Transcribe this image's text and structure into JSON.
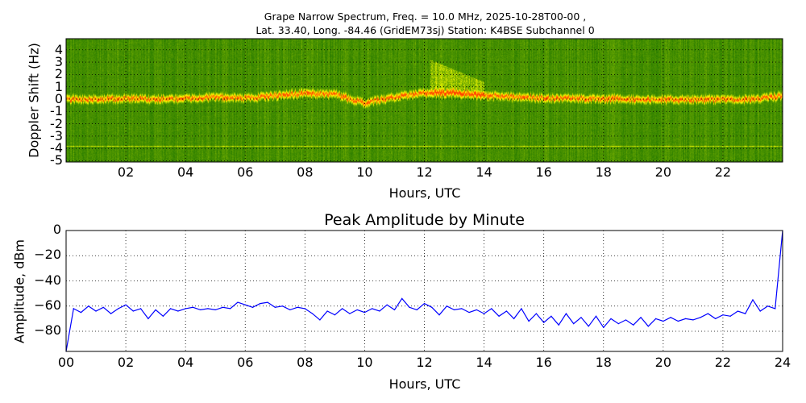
{
  "chart_data": [
    {
      "type": "heatmap",
      "title_line1": "Grape Narrow Spectrum, Freq. = 10.0 MHz, 2025-10-28T00-00 ,",
      "title_line2": "Lat.  33.40, Long. -84.46 (GridEM73sj) Station: K4BSE Subchannel 0",
      "xlabel": "Hours, UTC",
      "ylabel": "Doppler Shift (Hz)",
      "xlim": [
        0,
        24
      ],
      "ylim": [
        -5.1,
        4.9
      ],
      "xticks": [
        2,
        4,
        6,
        8,
        10,
        12,
        14,
        16,
        18,
        20,
        22
      ],
      "xtick_labels": [
        "02",
        "04",
        "06",
        "08",
        "10",
        "12",
        "14",
        "16",
        "18",
        "20",
        "22"
      ],
      "yticks": [
        4,
        3,
        2,
        1,
        0,
        -1,
        -2,
        -3,
        -4,
        -5
      ],
      "ytick_labels": [
        "4",
        "3",
        "2",
        "1",
        "0",
        "-1",
        "-2",
        "-3",
        "-4",
        "-5"
      ],
      "grid": true,
      "doppler_trace_hours": [
        0,
        1,
        2,
        3,
        4,
        5,
        6,
        7,
        8,
        9,
        10,
        11,
        12,
        13,
        14,
        15,
        16,
        17,
        18,
        19,
        20,
        21,
        22,
        23,
        24
      ],
      "doppler_trace_hz": [
        0,
        0,
        0.1,
        0,
        0.1,
        0.2,
        0.1,
        0.3,
        0.5,
        0.4,
        -0.3,
        0.2,
        0.5,
        0.5,
        0.3,
        0.2,
        0.1,
        0.1,
        0.05,
        0,
        0,
        0,
        0,
        0,
        0.3
      ],
      "constant_line_hz": -3.8
    },
    {
      "type": "line",
      "title": "Peak Amplitude by Minute",
      "xlabel": "Hours, UTC",
      "ylabel": "Amplitude, dBm",
      "xlim": [
        0,
        24
      ],
      "ylim": [
        -96,
        0
      ],
      "xticks": [
        0,
        2,
        4,
        6,
        8,
        10,
        12,
        14,
        16,
        18,
        20,
        22,
        24
      ],
      "xtick_labels": [
        "00",
        "02",
        "04",
        "06",
        "08",
        "10",
        "12",
        "14",
        "16",
        "18",
        "20",
        "22",
        "24"
      ],
      "yticks": [
        0,
        -20,
        -40,
        -60,
        -80
      ],
      "ytick_labels": [
        "0",
        "−20",
        "−40",
        "−60",
        "−80"
      ],
      "grid": true,
      "series": [
        {
          "name": "Peak Amplitude",
          "color": "#0000ff",
          "x_step_hours": 0.25,
          "values": [
            -96,
            -62,
            -65,
            -60,
            -64,
            -61,
            -66,
            -62,
            -59,
            -64,
            -62,
            -70,
            -63,
            -68,
            -62,
            -64,
            -62,
            -61,
            -63,
            -62,
            -63,
            -61,
            -62,
            -57,
            -59,
            -61,
            -58,
            -57,
            -61,
            -60,
            -63,
            -61,
            -62,
            -66,
            -71,
            -64,
            -67,
            -62,
            -66,
            -63,
            -65,
            -62,
            -64,
            -59,
            -63,
            -54,
            -61,
            -63,
            -58,
            -61,
            -67,
            -60,
            -63,
            -62,
            -65,
            -63,
            -66,
            -62,
            -68,
            -64,
            -70,
            -62,
            -72,
            -66,
            -73,
            -68,
            -75,
            -66,
            -74,
            -69,
            -76,
            -68,
            -77,
            -70,
            -74,
            -71,
            -75,
            -69,
            -76,
            -70,
            -72,
            -69,
            -72,
            -70,
            -71,
            -69,
            -66,
            -70,
            -67,
            -68,
            -64,
            -66,
            -55,
            -64,
            -60,
            -62,
            0
          ]
        }
      ]
    }
  ]
}
